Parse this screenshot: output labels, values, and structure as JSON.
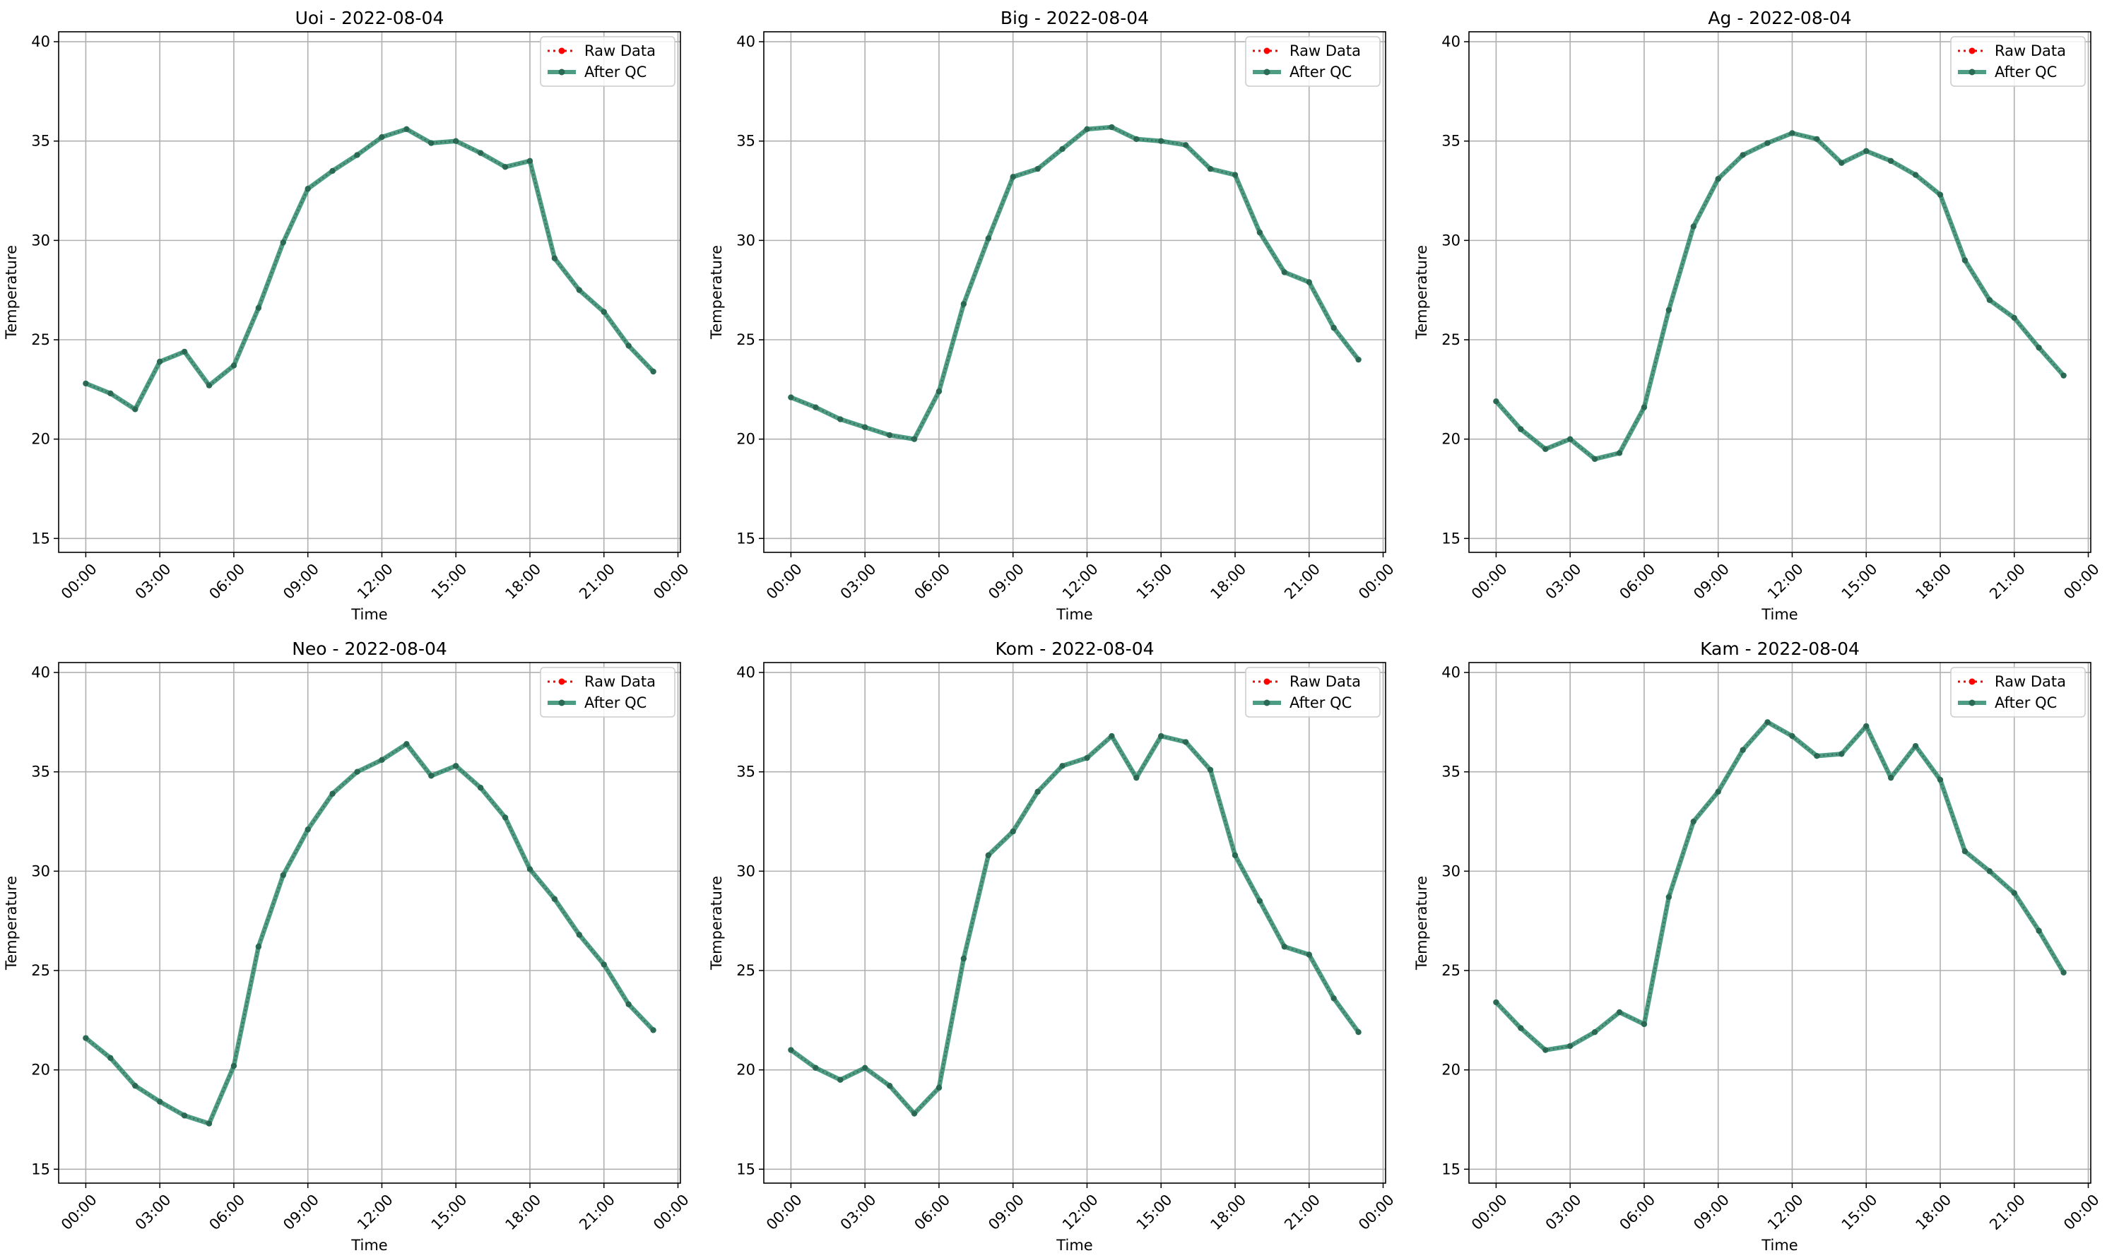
{
  "legend": {
    "raw_label": "Raw Data",
    "qc_label": "After QC"
  },
  "colors": {
    "raw": "#ff0000",
    "qc": "#2e8b6e",
    "qc_marker": "#2a6b55",
    "grid": "#b0b0b0"
  },
  "chart_data": [
    {
      "type": "line",
      "title": "Uoi - 2022-08-04",
      "xlabel": "Time",
      "ylabel": "Temperature",
      "xlim": [
        -1.1,
        24.1
      ],
      "ylim": [
        14.3,
        40.5
      ],
      "xticks": [
        0,
        3,
        6,
        9,
        12,
        15,
        18,
        21,
        24
      ],
      "xtick_labels": [
        "00:00",
        "03:00",
        "06:00",
        "09:00",
        "12:00",
        "15:00",
        "18:00",
        "21:00",
        "00:00"
      ],
      "yticks": [
        15,
        20,
        25,
        30,
        35,
        40
      ],
      "legend_position": "top-right",
      "grid": true,
      "series": [
        {
          "name": "Raw Data",
          "x": [
            0,
            1,
            2,
            3,
            4,
            5,
            6,
            7,
            8,
            9,
            10,
            11,
            12,
            13,
            14,
            15,
            16,
            17,
            18,
            19,
            20,
            21,
            22,
            23
          ],
          "values": [
            22.8,
            22.3,
            21.5,
            23.9,
            24.4,
            22.7,
            23.7,
            26.6,
            29.9,
            32.6,
            33.5,
            34.3,
            35.2,
            35.6,
            34.9,
            35.0,
            34.4,
            33.7,
            34.0,
            29.1,
            27.5,
            26.4,
            24.7,
            23.4
          ]
        },
        {
          "name": "After QC",
          "x": [
            0,
            1,
            2,
            3,
            4,
            5,
            6,
            7,
            8,
            9,
            10,
            11,
            12,
            13,
            14,
            15,
            16,
            17,
            18,
            19,
            20,
            21,
            22,
            23
          ],
          "values": [
            22.8,
            22.3,
            21.5,
            23.9,
            24.4,
            22.7,
            23.7,
            26.6,
            29.9,
            32.6,
            33.5,
            34.3,
            35.2,
            35.6,
            34.9,
            35.0,
            34.4,
            33.7,
            34.0,
            29.1,
            27.5,
            26.4,
            24.7,
            23.4
          ]
        }
      ]
    },
    {
      "type": "line",
      "title": "Big - 2022-08-04",
      "xlabel": "Time",
      "ylabel": "Temperature",
      "xlim": [
        -1.1,
        24.1
      ],
      "ylim": [
        14.3,
        40.5
      ],
      "xticks": [
        0,
        3,
        6,
        9,
        12,
        15,
        18,
        21,
        24
      ],
      "xtick_labels": [
        "00:00",
        "03:00",
        "06:00",
        "09:00",
        "12:00",
        "15:00",
        "18:00",
        "21:00",
        "00:00"
      ],
      "yticks": [
        15,
        20,
        25,
        30,
        35,
        40
      ],
      "legend_position": "top-right",
      "grid": true,
      "series": [
        {
          "name": "Raw Data",
          "x": [
            0,
            1,
            2,
            3,
            4,
            5,
            6,
            7,
            8,
            9,
            10,
            11,
            12,
            13,
            14,
            15,
            16,
            17,
            18,
            19,
            20,
            21,
            22,
            23
          ],
          "values": [
            22.1,
            21.6,
            21.0,
            20.6,
            20.2,
            20.0,
            22.4,
            26.8,
            30.1,
            33.2,
            33.6,
            34.6,
            35.6,
            35.7,
            35.1,
            35.0,
            34.8,
            33.6,
            33.3,
            30.4,
            28.4,
            27.9,
            25.6,
            24.0
          ]
        },
        {
          "name": "After QC",
          "x": [
            0,
            1,
            2,
            3,
            4,
            5,
            6,
            7,
            8,
            9,
            10,
            11,
            12,
            13,
            14,
            15,
            16,
            17,
            18,
            19,
            20,
            21,
            22,
            23
          ],
          "values": [
            22.1,
            21.6,
            21.0,
            20.6,
            20.2,
            20.0,
            22.4,
            26.8,
            30.1,
            33.2,
            33.6,
            34.6,
            35.6,
            35.7,
            35.1,
            35.0,
            34.8,
            33.6,
            33.3,
            30.4,
            28.4,
            27.9,
            25.6,
            24.0
          ]
        }
      ]
    },
    {
      "type": "line",
      "title": "Ag - 2022-08-04",
      "xlabel": "Time",
      "ylabel": "Temperature",
      "xlim": [
        -1.1,
        24.1
      ],
      "ylim": [
        14.3,
        40.5
      ],
      "xticks": [
        0,
        3,
        6,
        9,
        12,
        15,
        18,
        21,
        24
      ],
      "xtick_labels": [
        "00:00",
        "03:00",
        "06:00",
        "09:00",
        "12:00",
        "15:00",
        "18:00",
        "21:00",
        "00:00"
      ],
      "yticks": [
        15,
        20,
        25,
        30,
        35,
        40
      ],
      "legend_position": "top-right",
      "grid": true,
      "series": [
        {
          "name": "Raw Data",
          "x": [
            0,
            1,
            2,
            3,
            4,
            5,
            6,
            7,
            8,
            9,
            10,
            11,
            12,
            13,
            14,
            15,
            16,
            17,
            18,
            19,
            20,
            21,
            22,
            23
          ],
          "values": [
            21.9,
            20.5,
            19.5,
            20.0,
            19.0,
            19.3,
            21.6,
            26.5,
            30.7,
            33.1,
            34.3,
            34.9,
            35.4,
            35.1,
            33.9,
            34.5,
            34.0,
            33.3,
            32.3,
            29.0,
            27.0,
            26.1,
            24.6,
            23.2
          ]
        },
        {
          "name": "After QC",
          "x": [
            0,
            1,
            2,
            3,
            4,
            5,
            6,
            7,
            8,
            9,
            10,
            11,
            12,
            13,
            14,
            15,
            16,
            17,
            18,
            19,
            20,
            21,
            22,
            23
          ],
          "values": [
            21.9,
            20.5,
            19.5,
            20.0,
            19.0,
            19.3,
            21.6,
            26.5,
            30.7,
            33.1,
            34.3,
            34.9,
            35.4,
            35.1,
            33.9,
            34.5,
            34.0,
            33.3,
            32.3,
            29.0,
            27.0,
            26.1,
            24.6,
            23.2
          ]
        }
      ]
    },
    {
      "type": "line",
      "title": "Neo - 2022-08-04",
      "xlabel": "Time",
      "ylabel": "Temperature",
      "xlim": [
        -1.1,
        24.1
      ],
      "ylim": [
        14.3,
        40.5
      ],
      "xticks": [
        0,
        3,
        6,
        9,
        12,
        15,
        18,
        21,
        24
      ],
      "xtick_labels": [
        "00:00",
        "03:00",
        "06:00",
        "09:00",
        "12:00",
        "15:00",
        "18:00",
        "21:00",
        "00:00"
      ],
      "yticks": [
        15,
        20,
        25,
        30,
        35,
        40
      ],
      "legend_position": "top-right",
      "grid": true,
      "series": [
        {
          "name": "Raw Data",
          "x": [
            0,
            1,
            2,
            3,
            4,
            5,
            6,
            7,
            8,
            9,
            10,
            11,
            12,
            13,
            14,
            15,
            16,
            17,
            18,
            19,
            20,
            21,
            22,
            23
          ],
          "values": [
            21.6,
            20.6,
            19.2,
            18.4,
            17.7,
            17.3,
            20.2,
            26.2,
            29.8,
            32.1,
            33.9,
            35.0,
            35.6,
            36.4,
            34.8,
            35.3,
            34.2,
            32.7,
            30.1,
            28.6,
            26.8,
            25.3,
            23.3,
            22.0
          ]
        },
        {
          "name": "After QC",
          "x": [
            0,
            1,
            2,
            3,
            4,
            5,
            6,
            7,
            8,
            9,
            10,
            11,
            12,
            13,
            14,
            15,
            16,
            17,
            18,
            19,
            20,
            21,
            22,
            23
          ],
          "values": [
            21.6,
            20.6,
            19.2,
            18.4,
            17.7,
            17.3,
            20.2,
            26.2,
            29.8,
            32.1,
            33.9,
            35.0,
            35.6,
            36.4,
            34.8,
            35.3,
            34.2,
            32.7,
            30.1,
            28.6,
            26.8,
            25.3,
            23.3,
            22.0
          ]
        }
      ]
    },
    {
      "type": "line",
      "title": "Kom - 2022-08-04",
      "xlabel": "Time",
      "ylabel": "Temperature",
      "xlim": [
        -1.1,
        24.1
      ],
      "ylim": [
        14.3,
        40.5
      ],
      "xticks": [
        0,
        3,
        6,
        9,
        12,
        15,
        18,
        21,
        24
      ],
      "xtick_labels": [
        "00:00",
        "03:00",
        "06:00",
        "09:00",
        "12:00",
        "15:00",
        "18:00",
        "21:00",
        "00:00"
      ],
      "yticks": [
        15,
        20,
        25,
        30,
        35,
        40
      ],
      "legend_position": "top-right",
      "grid": true,
      "series": [
        {
          "name": "Raw Data",
          "x": [
            0,
            1,
            2,
            3,
            4,
            5,
            6,
            7,
            8,
            9,
            10,
            11,
            12,
            13,
            14,
            15,
            16,
            17,
            18,
            19,
            20,
            21,
            22,
            23
          ],
          "values": [
            21.0,
            20.1,
            19.5,
            20.1,
            19.2,
            17.8,
            19.1,
            25.6,
            30.8,
            32.0,
            34.0,
            35.3,
            35.7,
            36.8,
            34.7,
            36.8,
            36.5,
            35.1,
            30.8,
            28.5,
            26.2,
            25.8,
            23.6,
            21.9
          ]
        },
        {
          "name": "After QC",
          "x": [
            0,
            1,
            2,
            3,
            4,
            5,
            6,
            7,
            8,
            9,
            10,
            11,
            12,
            13,
            14,
            15,
            16,
            17,
            18,
            19,
            20,
            21,
            22,
            23
          ],
          "values": [
            21.0,
            20.1,
            19.5,
            20.1,
            19.2,
            17.8,
            19.1,
            25.6,
            30.8,
            32.0,
            34.0,
            35.3,
            35.7,
            36.8,
            34.7,
            36.8,
            36.5,
            35.1,
            30.8,
            28.5,
            26.2,
            25.8,
            23.6,
            21.9
          ]
        }
      ]
    },
    {
      "type": "line",
      "title": "Kam - 2022-08-04",
      "xlabel": "Time",
      "ylabel": "Temperature",
      "xlim": [
        -1.1,
        24.1
      ],
      "ylim": [
        14.3,
        40.5
      ],
      "xticks": [
        0,
        3,
        6,
        9,
        12,
        15,
        18,
        21,
        24
      ],
      "xtick_labels": [
        "00:00",
        "03:00",
        "06:00",
        "09:00",
        "12:00",
        "15:00",
        "18:00",
        "21:00",
        "00:00"
      ],
      "yticks": [
        15,
        20,
        25,
        30,
        35,
        40
      ],
      "legend_position": "top-right",
      "grid": true,
      "series": [
        {
          "name": "Raw Data",
          "x": [
            0,
            1,
            2,
            3,
            4,
            5,
            6,
            7,
            8,
            9,
            10,
            11,
            12,
            13,
            14,
            15,
            16,
            17,
            18,
            19,
            20,
            21,
            22,
            23
          ],
          "values": [
            23.4,
            22.1,
            21.0,
            21.2,
            21.9,
            22.9,
            22.3,
            28.7,
            32.5,
            34.0,
            36.1,
            37.5,
            36.8,
            35.8,
            35.9,
            37.3,
            34.7,
            36.3,
            34.6,
            31.0,
            30.0,
            28.9,
            27.0,
            24.9
          ]
        },
        {
          "name": "After QC",
          "x": [
            0,
            1,
            2,
            3,
            4,
            5,
            6,
            7,
            8,
            9,
            10,
            11,
            12,
            13,
            14,
            15,
            16,
            17,
            18,
            19,
            20,
            21,
            22,
            23
          ],
          "values": [
            23.4,
            22.1,
            21.0,
            21.2,
            21.9,
            22.9,
            22.3,
            28.7,
            32.5,
            34.0,
            36.1,
            37.5,
            36.8,
            35.8,
            35.9,
            37.3,
            34.7,
            36.3,
            34.6,
            31.0,
            30.0,
            28.9,
            27.0,
            24.9
          ]
        }
      ]
    }
  ]
}
